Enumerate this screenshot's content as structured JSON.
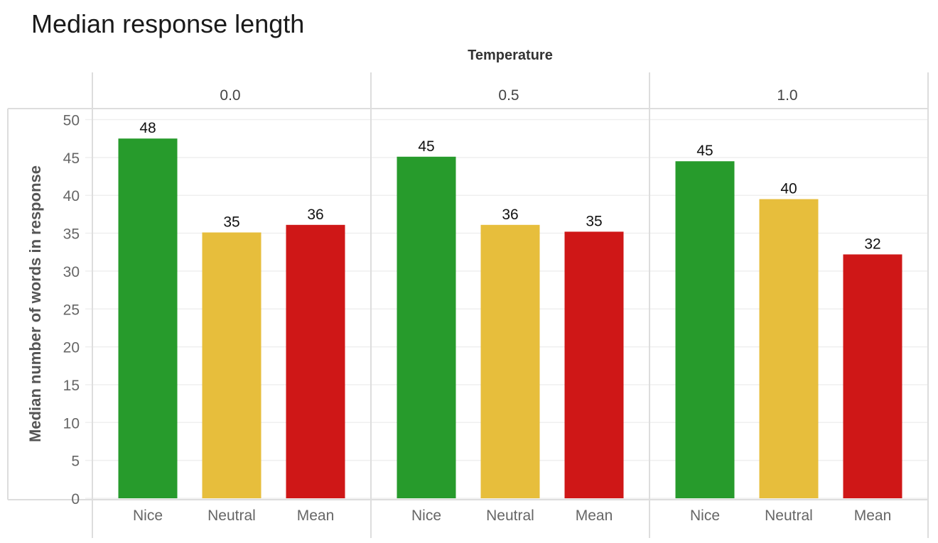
{
  "chart_data": {
    "type": "bar",
    "title": "Median response length",
    "facet_label": "Temperature",
    "ylabel": "Median number of words in response",
    "xlabel": "",
    "ylim": [
      0,
      50
    ],
    "yticks": [
      0,
      5,
      10,
      15,
      20,
      25,
      30,
      35,
      40,
      45,
      50
    ],
    "grid": true,
    "categories": [
      "Nice",
      "Neutral",
      "Mean"
    ],
    "colors": {
      "Nice": "#279b2c",
      "Neutral": "#e7be3c",
      "Mean": "#cf1717"
    },
    "facets": [
      {
        "name": "0.0",
        "values": [
          47.5,
          35.1,
          36.1
        ],
        "labels": [
          "48",
          "35",
          "36"
        ]
      },
      {
        "name": "0.5",
        "values": [
          45.1,
          36.1,
          35.2
        ],
        "labels": [
          "45",
          "36",
          "35"
        ]
      },
      {
        "name": "1.0",
        "values": [
          44.5,
          39.5,
          32.2
        ],
        "labels": [
          "45",
          "40",
          "32"
        ]
      }
    ]
  }
}
